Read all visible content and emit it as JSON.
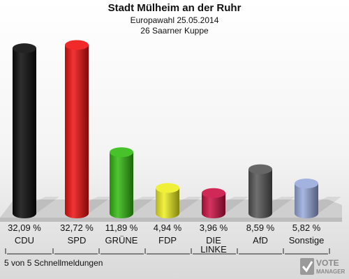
{
  "title": "Stadt Mülheim an der Ruhr",
  "subtitle_lines": [
    "Europawahl 25.05.2014",
    "26 Saarner Kuppe"
  ],
  "footer": "5 von 5 Schnellmeldungen",
  "logo": {
    "line1": "VOTE",
    "line2": "MANAGER"
  },
  "chart_data": {
    "type": "bar",
    "style": "3d-cylinder",
    "categories": [
      "CDU",
      "SPD",
      "GRÜNE",
      "FDP",
      "DIE LINKE",
      "AfD",
      "Sonstige"
    ],
    "category_lines": [
      [
        "CDU"
      ],
      [
        "SPD"
      ],
      [
        "GRÜNE"
      ],
      [
        "FDP"
      ],
      [
        "DIE",
        "LINKE"
      ],
      [
        "AfD"
      ],
      [
        "Sonstige"
      ]
    ],
    "values": [
      32.09,
      32.72,
      11.89,
      4.94,
      3.96,
      8.59,
      5.82
    ],
    "value_labels": [
      "32,09 %",
      "32,72 %",
      "11,89 %",
      "4,94 %",
      "3,96 %",
      "8,59 %",
      "5,82 %"
    ],
    "colors": [
      "#0a0a0a",
      "#ee1111",
      "#33bb11",
      "#eeee22",
      "#cc1144",
      "#555555",
      "#99aadd"
    ],
    "grid": false,
    "legend": "none"
  }
}
